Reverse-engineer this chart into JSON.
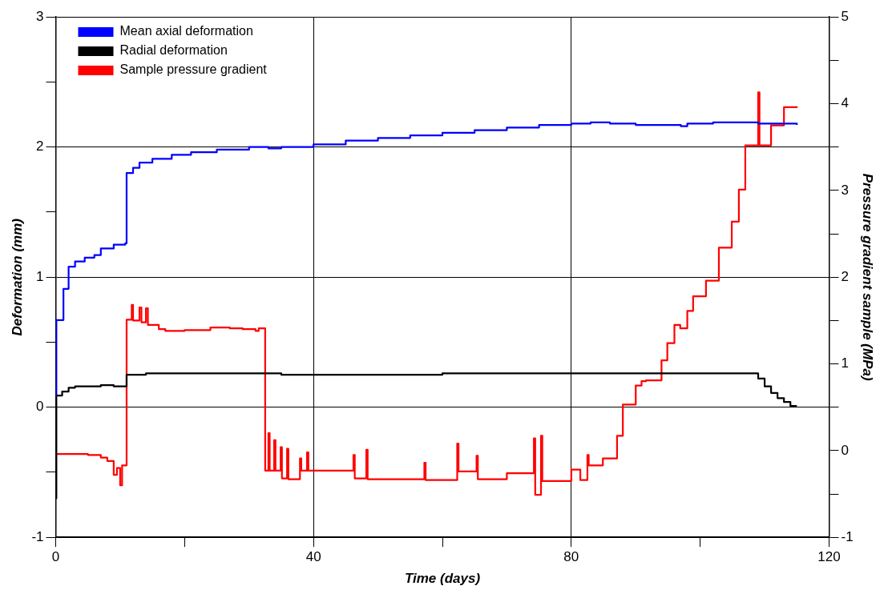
{
  "chart_data": {
    "type": "step",
    "xlabel": "Time (days)",
    "ylabel": "Deformation (mm)",
    "y2label": "Pressure gradient sample (MPa)",
    "xlim": [
      0,
      120
    ],
    "xticks": [
      0,
      {
        "value": 20,
        "label": null
      },
      40,
      {
        "value": 60,
        "label": null
      },
      80,
      {
        "value": 100,
        "label": null
      },
      120
    ],
    "ylim": [
      -1,
      3
    ],
    "yticks": [
      -1,
      {
        "value": -0.5,
        "label": null
      },
      0,
      {
        "value": 0.5,
        "label": null
      },
      1,
      {
        "value": 1.5,
        "label": null
      },
      2,
      {
        "value": 2.5,
        "label": null
      },
      3
    ],
    "y2lim": [
      -1,
      5
    ],
    "y2ticks": [
      -1,
      {
        "value": -0.5,
        "label": null
      },
      0,
      {
        "value": 0.5,
        "label": null
      },
      1,
      {
        "value": 1.5,
        "label": null
      },
      2,
      {
        "value": 2.5,
        "label": null
      },
      3,
      {
        "value": 3.5,
        "label": null
      },
      4,
      {
        "value": 4.5,
        "label": null
      },
      5
    ],
    "grid": true,
    "legend": "top left",
    "marker": "none",
    "line_style": "solid",
    "series": [
      {
        "name": "Mean axial deformation",
        "color": "#0000ff",
        "x": [
          0,
          0.1,
          1.2,
          2,
          3,
          4.5,
          6,
          7,
          9,
          10.8,
          11,
          12,
          13,
          15,
          18,
          21,
          25,
          30,
          33,
          35,
          40,
          45,
          50,
          55,
          60,
          65,
          70,
          75,
          80,
          83,
          86,
          90,
          95,
          97,
          98,
          102,
          107,
          109,
          115
        ],
        "values": [
          0.09,
          0.67,
          0.91,
          1.08,
          1.12,
          1.15,
          1.17,
          1.22,
          1.25,
          1.26,
          1.8,
          1.84,
          1.88,
          1.91,
          1.94,
          1.96,
          1.98,
          2.0,
          1.99,
          2.0,
          2.02,
          2.05,
          2.07,
          2.09,
          2.11,
          2.13,
          2.15,
          2.17,
          2.18,
          2.19,
          2.18,
          2.17,
          2.17,
          2.16,
          2.18,
          2.19,
          2.19,
          2.18,
          2.17
        ]
      },
      {
        "name": "Radial deformation",
        "color": "#000000",
        "x": [
          0,
          0.1,
          1,
          2,
          3,
          7,
          9,
          11,
          14,
          35,
          60,
          108.5,
          109,
          110,
          111,
          112,
          113,
          114,
          115
        ],
        "values": [
          -0.7,
          0.09,
          0.12,
          0.15,
          0.16,
          0.17,
          0.16,
          0.25,
          0.26,
          0.25,
          0.26,
          0.26,
          0.22,
          0.16,
          0.11,
          0.07,
          0.04,
          0.01,
          0.01
        ]
      },
      {
        "name": "Sample pressure gradient",
        "color": "#ff0000",
        "axis": "y2",
        "x": [
          0,
          5,
          7,
          8,
          9,
          9.5,
          10,
          10.3,
          11,
          11.8,
          12,
          13,
          13.3,
          14,
          14.3,
          16,
          17,
          20,
          24,
          27,
          29,
          31,
          31.5,
          32.5,
          33,
          33.2,
          33.9,
          34.1,
          34.9,
          35.1,
          35.9,
          36.1,
          37.9,
          38.1,
          39,
          39.2,
          46.2,
          46.4,
          48.2,
          48.4,
          57.2,
          57.4,
          62.3,
          62.5,
          65.3,
          65.5,
          70,
          74.2,
          74.4,
          75.3,
          75.5,
          80,
          81.4,
          82.5,
          82.7,
          84.9,
          87.1,
          88,
          90,
          90.9,
          91.6,
          94,
          94.9,
          96,
          96.9,
          98,
          98.9,
          100.9,
          102.9,
          104.9,
          106,
          107,
          109,
          109.2,
          111,
          113,
          115
        ],
        "values": [
          -0.04,
          -0.05,
          -0.08,
          -0.12,
          -0.28,
          -0.2,
          -0.4,
          -0.17,
          1.51,
          1.68,
          1.5,
          1.65,
          1.48,
          1.64,
          1.45,
          1.4,
          1.38,
          1.39,
          1.42,
          1.41,
          1.4,
          1.38,
          1.41,
          -0.23,
          0.2,
          -0.23,
          0.12,
          -0.23,
          0.04,
          -0.32,
          0.02,
          -0.33,
          -0.09,
          -0.23,
          -0.02,
          -0.23,
          -0.05,
          -0.32,
          0.01,
          -0.33,
          -0.14,
          -0.34,
          0.08,
          -0.24,
          -0.06,
          -0.33,
          -0.26,
          0.14,
          -0.51,
          0.17,
          -0.35,
          -0.22,
          -0.34,
          -0.05,
          -0.17,
          -0.09,
          0.17,
          0.53,
          0.75,
          0.8,
          0.81,
          1.04,
          1.24,
          1.45,
          1.41,
          1.61,
          1.78,
          1.96,
          2.34,
          2.64,
          3.01,
          3.52,
          4.13,
          3.52,
          3.75,
          3.96,
          3.97
        ]
      }
    ]
  }
}
